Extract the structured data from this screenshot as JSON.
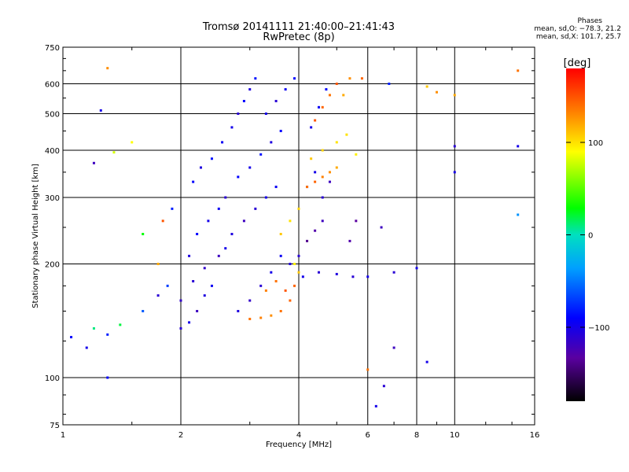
{
  "header": {
    "title": "Tromsø 20141111 21:40:00–21:41:43",
    "subtitle": "RwPretec (8p)"
  },
  "phases": {
    "heading": "Phases",
    "line1": "mean, sd,O: −78.3, 21.2",
    "line2": "mean, sd,X: 101.7, 25.7"
  },
  "colorbar": {
    "label": "[deg]",
    "ticks": [
      {
        "value": 100,
        "label": "100"
      },
      {
        "value": 0,
        "label": "0"
      },
      {
        "value": -100,
        "label": "−100"
      }
    ],
    "range": [
      -180,
      180
    ]
  },
  "chart_data": {
    "type": "scatter",
    "title": "Tromsø 20141111 21:40:00–21:41:43",
    "subtitle": "RwPretec (8p)",
    "xlabel": "Frequency [MHz]",
    "ylabel": "Stationary phase Virtual Height [km]",
    "x_scale": "log",
    "y_scale": "log",
    "xlim": [
      1,
      16
    ],
    "ylim": [
      75,
      750
    ],
    "x_ticks": [
      1,
      2,
      4,
      6,
      8,
      10,
      16
    ],
    "x_tick_labels": [
      "1",
      "2",
      "4",
      "6",
      "8",
      "10",
      "16"
    ],
    "y_ticks": [
      75,
      100,
      200,
      300,
      400,
      500,
      600,
      750
    ],
    "y_tick_labels": [
      "75",
      "100",
      "200",
      "300",
      "400",
      "500",
      "600",
      "750"
    ],
    "color_scale": "phase [deg], rainbow from black (−180) through blue, cyan, green, yellow to red (+180)",
    "grid": true,
    "series": [
      {
        "comment": "O-mode cluster (blue)",
        "points": [
          [
            1.05,
            128,
            -90
          ],
          [
            1.15,
            120,
            -100
          ],
          [
            1.3,
            130,
            -80
          ],
          [
            1.4,
            138,
            20
          ],
          [
            1.2,
            135,
            10
          ],
          [
            1.6,
            150,
            -60
          ],
          [
            1.75,
            165,
            -110
          ],
          [
            1.85,
            175,
            -70
          ],
          [
            2.0,
            135,
            -110
          ],
          [
            2.1,
            140,
            -100
          ],
          [
            2.2,
            150,
            -120
          ],
          [
            2.3,
            165,
            -105
          ],
          [
            2.4,
            175,
            -95
          ],
          [
            2.0,
            160,
            -115
          ],
          [
            2.15,
            180,
            -110
          ],
          [
            2.3,
            195,
            -115
          ],
          [
            2.5,
            210,
            -120
          ],
          [
            2.6,
            220,
            -100
          ],
          [
            2.1,
            210,
            -105
          ],
          [
            2.2,
            240,
            -90
          ],
          [
            2.35,
            260,
            -100
          ],
          [
            2.5,
            280,
            -95
          ],
          [
            2.6,
            300,
            -110
          ],
          [
            2.15,
            330,
            -90
          ],
          [
            2.25,
            360,
            -105
          ],
          [
            2.4,
            380,
            -85
          ],
          [
            2.55,
            420,
            -95
          ],
          [
            2.7,
            460,
            -100
          ],
          [
            2.8,
            500,
            -110
          ],
          [
            2.9,
            540,
            -90
          ],
          [
            3.0,
            580,
            -105
          ],
          [
            3.1,
            620,
            -85
          ],
          [
            2.8,
            150,
            -105
          ],
          [
            3.0,
            160,
            -115
          ],
          [
            3.2,
            175,
            -110
          ],
          [
            3.4,
            190,
            -100
          ],
          [
            3.6,
            210,
            -95
          ],
          [
            2.7,
            240,
            -105
          ],
          [
            2.9,
            260,
            -120
          ],
          [
            3.1,
            280,
            -110
          ],
          [
            3.3,
            300,
            -100
          ],
          [
            3.5,
            320,
            -95
          ],
          [
            2.8,
            340,
            -90
          ],
          [
            3.0,
            360,
            -100
          ],
          [
            3.2,
            390,
            -85
          ],
          [
            3.4,
            420,
            -105
          ],
          [
            3.6,
            450,
            -90
          ],
          [
            3.3,
            500,
            -100
          ],
          [
            3.5,
            540,
            -110
          ],
          [
            3.7,
            580,
            -95
          ],
          [
            3.9,
            620,
            -90
          ],
          [
            3.8,
            200,
            -105
          ],
          [
            4.0,
            210,
            -110
          ],
          [
            4.2,
            230,
            -140
          ],
          [
            4.4,
            245,
            -130
          ],
          [
            4.6,
            260,
            -120
          ],
          [
            4.1,
            185,
            -100
          ],
          [
            4.5,
            190,
            -110
          ],
          [
            5.0,
            188,
            -105
          ],
          [
            5.5,
            185,
            -110
          ],
          [
            6.0,
            185,
            -100
          ],
          [
            4.2,
            320,
            -95
          ],
          [
            4.4,
            350,
            -100
          ],
          [
            4.6,
            300,
            -110
          ],
          [
            4.8,
            330,
            -120
          ],
          [
            4.3,
            460,
            -100
          ],
          [
            4.5,
            520,
            -95
          ],
          [
            4.7,
            580,
            -90
          ],
          [
            6.5,
            250,
            -120
          ],
          [
            7.0,
            190,
            -110
          ],
          [
            8.0,
            195,
            -100
          ],
          [
            6.8,
            600,
            -80
          ],
          [
            5.4,
            230,
            -130
          ],
          [
            5.6,
            260,
            -135
          ],
          [
            6.3,
            84,
            -100
          ]
        ]
      },
      {
        "comment": "X-mode traces (orange/yellow)",
        "points": [
          [
            3.0,
            143,
            140
          ],
          [
            3.2,
            144,
            135
          ],
          [
            3.4,
            146,
            130
          ],
          [
            3.6,
            150,
            140
          ],
          [
            3.8,
            160,
            145
          ],
          [
            3.3,
            170,
            135
          ],
          [
            3.5,
            180,
            140
          ],
          [
            3.7,
            170,
            150
          ],
          [
            3.9,
            175,
            145
          ],
          [
            3.6,
            240,
            110
          ],
          [
            3.8,
            260,
            100
          ],
          [
            4.0,
            280,
            105
          ],
          [
            3.9,
            200,
            95
          ],
          [
            4.0,
            190,
            110
          ],
          [
            4.2,
            320,
            140
          ],
          [
            4.4,
            330,
            145
          ],
          [
            4.6,
            340,
            135
          ],
          [
            4.8,
            350,
            130
          ],
          [
            5.0,
            360,
            120
          ],
          [
            4.3,
            380,
            110
          ],
          [
            4.6,
            400,
            105
          ],
          [
            5.0,
            420,
            100
          ],
          [
            5.3,
            440,
            100
          ],
          [
            5.6,
            390,
            95
          ],
          [
            4.4,
            480,
            150
          ],
          [
            4.6,
            520,
            145
          ],
          [
            4.8,
            560,
            140
          ],
          [
            5.0,
            600,
            150
          ],
          [
            5.2,
            560,
            120
          ],
          [
            5.4,
            620,
            130
          ],
          [
            5.8,
            620,
            145
          ]
        ]
      },
      {
        "comment": "outliers",
        "points": [
          [
            1.3,
            660,
            130
          ],
          [
            1.25,
            510,
            -100
          ],
          [
            1.35,
            395,
            80
          ],
          [
            1.2,
            370,
            -120
          ],
          [
            1.5,
            420,
            90
          ],
          [
            1.8,
            260,
            150
          ],
          [
            1.9,
            280,
            -80
          ],
          [
            1.75,
            200,
            120
          ],
          [
            1.6,
            240,
            30
          ],
          [
            8.5,
            590,
            110
          ],
          [
            9.0,
            570,
            130
          ],
          [
            10.0,
            560,
            120
          ],
          [
            10.0,
            410,
            -110
          ],
          [
            10.0,
            350,
            -100
          ],
          [
            14.5,
            650,
            140
          ],
          [
            14.5,
            410,
            -100
          ],
          [
            14.5,
            270,
            -40
          ],
          [
            7.0,
            120,
            -120
          ],
          [
            6.0,
            105,
            140
          ],
          [
            6.6,
            95,
            -110
          ],
          [
            8.5,
            110,
            -100
          ],
          [
            1.3,
            100,
            -90
          ]
        ]
      }
    ]
  }
}
